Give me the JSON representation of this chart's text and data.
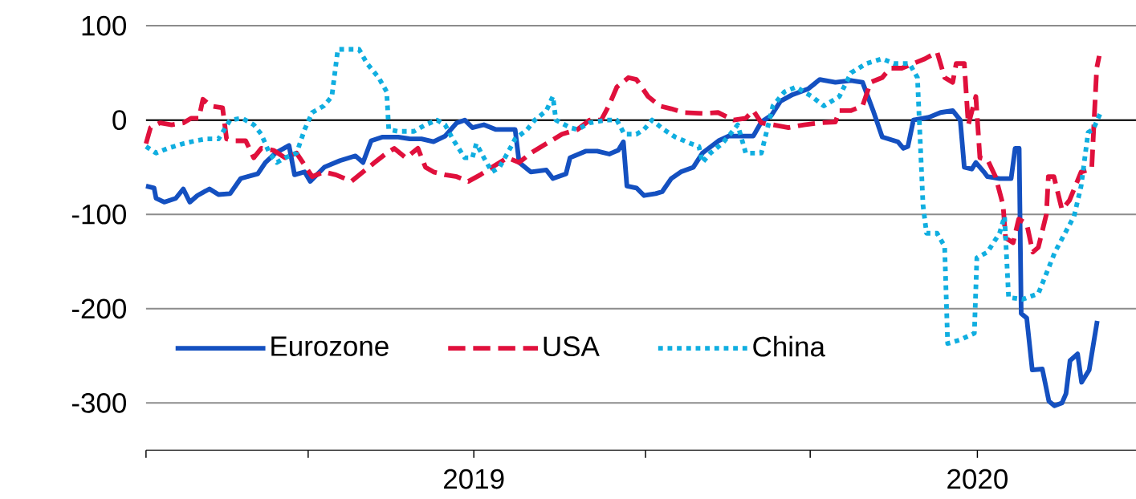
{
  "chart_data": {
    "type": "line",
    "xlim": [
      2018.349,
      2020.315
    ],
    "xticks": [
      {
        "value": 2018.349,
        "label": null
      },
      {
        "value": 2018.671,
        "label": null
      },
      {
        "value": 2019,
        "label": "2019"
      },
      {
        "value": 2019.341,
        "label": null
      },
      {
        "value": 2019.668,
        "label": null
      },
      {
        "value": 2020,
        "label": "2020"
      }
    ],
    "ylim": [
      -350,
      100
    ],
    "yticks": [
      -300,
      -200,
      -100,
      0,
      100
    ],
    "grid": "y",
    "legend": "bottom left",
    "marker": "none",
    "ref_lines": [
      {
        "axis": "y",
        "value": 0,
        "color": "#000000"
      }
    ],
    "series": [
      {
        "name": "Eurozone",
        "color": "#1450c0",
        "line_style": "solid",
        "x": [
          2018.349,
          2018.365,
          2018.369,
          2018.385,
          2018.408,
          2018.423,
          2018.436,
          2018.451,
          2018.475,
          2018.493,
          2018.516,
          2018.537,
          2018.571,
          2018.586,
          2018.606,
          2018.633,
          2018.644,
          2018.664,
          2018.675,
          2018.703,
          2018.734,
          2018.765,
          2018.78,
          2018.796,
          2018.819,
          2018.85,
          2018.873,
          2018.896,
          2018.92,
          2018.943,
          2018.966,
          2018.982,
          2018.997,
          2019.02,
          2019.044,
          2019.082,
          2019.09,
          2019.113,
          2019.144,
          2019.157,
          2019.183,
          2019.191,
          2019.222,
          2019.245,
          2019.269,
          2019.287,
          2019.297,
          2019.304,
          2019.323,
          2019.338,
          2019.361,
          2019.374,
          2019.392,
          2019.411,
          2019.436,
          2019.454,
          2019.486,
          2019.506,
          2019.54,
          2019.555,
          2019.571,
          2019.591,
          2019.609,
          2019.633,
          2019.664,
          2019.687,
          2019.718,
          2019.749,
          2019.772,
          2019.793,
          2019.811,
          2019.842,
          2019.853,
          2019.862,
          2019.873,
          2019.904,
          2019.927,
          2019.951,
          2019.966,
          2019.974,
          2019.989,
          2019.997,
          2020.013,
          2020.02,
          2020.044,
          2020.067,
          2020.075,
          2020.083,
          2020.087,
          2020.098,
          2020.109,
          2020.129,
          2020.142,
          2020.153,
          2020.168,
          2020.176,
          2020.184,
          2020.199,
          2020.207,
          2020.222,
          2020.238
        ],
        "values": [
          -70,
          -72,
          -83,
          -87,
          -83,
          -73,
          -87,
          -80,
          -73,
          -79,
          -78,
          -62,
          -57,
          -45,
          -35,
          -27,
          -58,
          -55,
          -65,
          -50,
          -43,
          -38,
          -45,
          -22,
          -18,
          -18,
          -20,
          -20,
          -23,
          -17,
          -3,
          0,
          -8,
          -5,
          -10,
          -10,
          -45,
          -55,
          -53,
          -62,
          -57,
          -40,
          -33,
          -33,
          -36,
          -32,
          -23,
          -70,
          -72,
          -80,
          -78,
          -76,
          -62,
          -55,
          -50,
          -35,
          -22,
          -17,
          -17,
          -17,
          -2,
          5,
          20,
          27,
          33,
          43,
          40,
          42,
          40,
          10,
          -18,
          -23,
          -30,
          -28,
          0,
          3,
          8,
          10,
          0,
          -50,
          -52,
          -45,
          -55,
          -60,
          -62,
          -62,
          -30,
          -30,
          -205,
          -210,
          -265,
          -264,
          -298,
          -303,
          -300,
          -290,
          -255,
          -248,
          -278,
          -265,
          -213
        ]
      },
      {
        "name": "USA",
        "color": "#e0103c",
        "line_style": "dashed",
        "x": [
          2018.349,
          2018.358,
          2018.377,
          2018.4,
          2018.423,
          2018.439,
          2018.454,
          2018.462,
          2018.478,
          2018.501,
          2018.509,
          2018.527,
          2018.547,
          2018.563,
          2018.578,
          2018.602,
          2018.625,
          2018.648,
          2018.679,
          2018.702,
          2018.726,
          2018.757,
          2018.78,
          2018.803,
          2018.827,
          2018.842,
          2018.865,
          2018.889,
          2018.904,
          2018.92,
          2018.943,
          2018.966,
          2018.989,
          2019.013,
          2019.036,
          2019.067,
          2019.09,
          2019.113,
          2019.144,
          2019.175,
          2019.206,
          2019.23,
          2019.253,
          2019.268,
          2019.284,
          2019.307,
          2019.323,
          2019.346,
          2019.369,
          2019.392,
          2019.416,
          2019.454,
          2019.485,
          2019.516,
          2019.54,
          2019.555,
          2019.571,
          2019.594,
          2019.625,
          2019.656,
          2019.687,
          2019.718,
          2019.726,
          2019.749,
          2019.772,
          2019.788,
          2019.811,
          2019.827,
          2019.85,
          2019.873,
          2019.896,
          2019.92,
          2019.935,
          2019.951,
          2019.958,
          2019.974,
          2019.982,
          2019.997,
          2020.005,
          2020.02,
          2020.036,
          2020.051,
          2020.056,
          2020.071,
          2020.082,
          2020.098,
          2020.11,
          2020.121,
          2020.137,
          2020.141,
          2020.152,
          2020.168,
          2020.183,
          2020.206,
          2020.227,
          2020.237,
          2020.242
        ],
        "values": [
          -25,
          -8,
          -3,
          -5,
          -3,
          2,
          2,
          22,
          15,
          13,
          -20,
          -22,
          -22,
          -40,
          -30,
          -32,
          -40,
          -35,
          -60,
          -55,
          -58,
          -65,
          -55,
          -45,
          -35,
          -30,
          -40,
          -30,
          -50,
          -55,
          -58,
          -60,
          -65,
          -58,
          -50,
          -40,
          -45,
          -35,
          -25,
          -15,
          -10,
          0,
          0,
          15,
          35,
          45,
          43,
          25,
          15,
          12,
          8,
          7,
          8,
          0,
          2,
          10,
          -3,
          -5,
          -8,
          -5,
          -3,
          -2,
          10,
          10,
          15,
          40,
          45,
          55,
          55,
          60,
          65,
          72,
          45,
          40,
          60,
          60,
          -5,
          25,
          -40,
          -42,
          -60,
          -90,
          -125,
          -130,
          -105,
          -110,
          -140,
          -135,
          -100,
          -60,
          -60,
          -95,
          -85,
          -55,
          -52,
          55,
          68
        ]
      },
      {
        "name": "China",
        "color": "#10aee0",
        "line_style": "dotted",
        "x": [
          2018.349,
          2018.369,
          2018.392,
          2018.423,
          2018.447,
          2018.47,
          2018.493,
          2018.516,
          2018.54,
          2018.563,
          2018.578,
          2018.594,
          2018.609,
          2018.625,
          2018.648,
          2018.664,
          2018.679,
          2018.702,
          2018.718,
          2018.73,
          2018.772,
          2018.788,
          2018.811,
          2018.827,
          2018.831,
          2018.85,
          2018.881,
          2018.904,
          2018.927,
          2018.943,
          2018.958,
          2018.982,
          2018.997,
          2019.005,
          2019.02,
          2019.036,
          2019.051,
          2019.067,
          2019.082,
          2019.106,
          2019.121,
          2019.144,
          2019.157,
          2019.163,
          2019.191,
          2019.206,
          2019.23,
          2019.261,
          2019.284,
          2019.299,
          2019.323,
          2019.338,
          2019.354,
          2019.377,
          2019.4,
          2019.431,
          2019.447,
          2019.454,
          2019.47,
          2019.493,
          2019.509,
          2019.524,
          2019.54,
          2019.571,
          2019.594,
          2019.617,
          2019.64,
          2019.671,
          2019.695,
          2019.726,
          2019.749,
          2019.78,
          2019.811,
          2019.834,
          2019.865,
          2019.881,
          2019.892,
          2019.899,
          2019.92,
          2019.935,
          2019.941,
          2019.966,
          2019.994,
          2019.999,
          2020.02,
          2020.044,
          2020.054,
          2020.062,
          2020.09,
          2020.121,
          2020.154,
          2020.192,
          2020.206,
          2020.22,
          2020.23,
          2020.244
        ],
        "values": [
          -28,
          -35,
          -30,
          -25,
          -22,
          -20,
          -20,
          0,
          2,
          -5,
          -15,
          -35,
          -45,
          -40,
          -35,
          -10,
          8,
          15,
          25,
          75,
          75,
          60,
          45,
          30,
          -10,
          -12,
          -12,
          -5,
          0,
          -5,
          -20,
          -40,
          -40,
          -25,
          -40,
          -55,
          -50,
          -35,
          -20,
          -10,
          0,
          10,
          25,
          0,
          -8,
          -10,
          -3,
          0,
          0,
          -15,
          -15,
          -10,
          0,
          -10,
          -18,
          -25,
          -28,
          -45,
          -35,
          -25,
          -15,
          -5,
          -35,
          -35,
          15,
          30,
          35,
          25,
          15,
          25,
          50,
          60,
          65,
          60,
          60,
          45,
          -90,
          -120,
          -120,
          -134,
          -237,
          -233,
          -226,
          -146,
          -140,
          -120,
          -102,
          -188,
          -190,
          -184,
          -140,
          -102,
          -70,
          -13,
          -10,
          7
        ]
      }
    ]
  }
}
